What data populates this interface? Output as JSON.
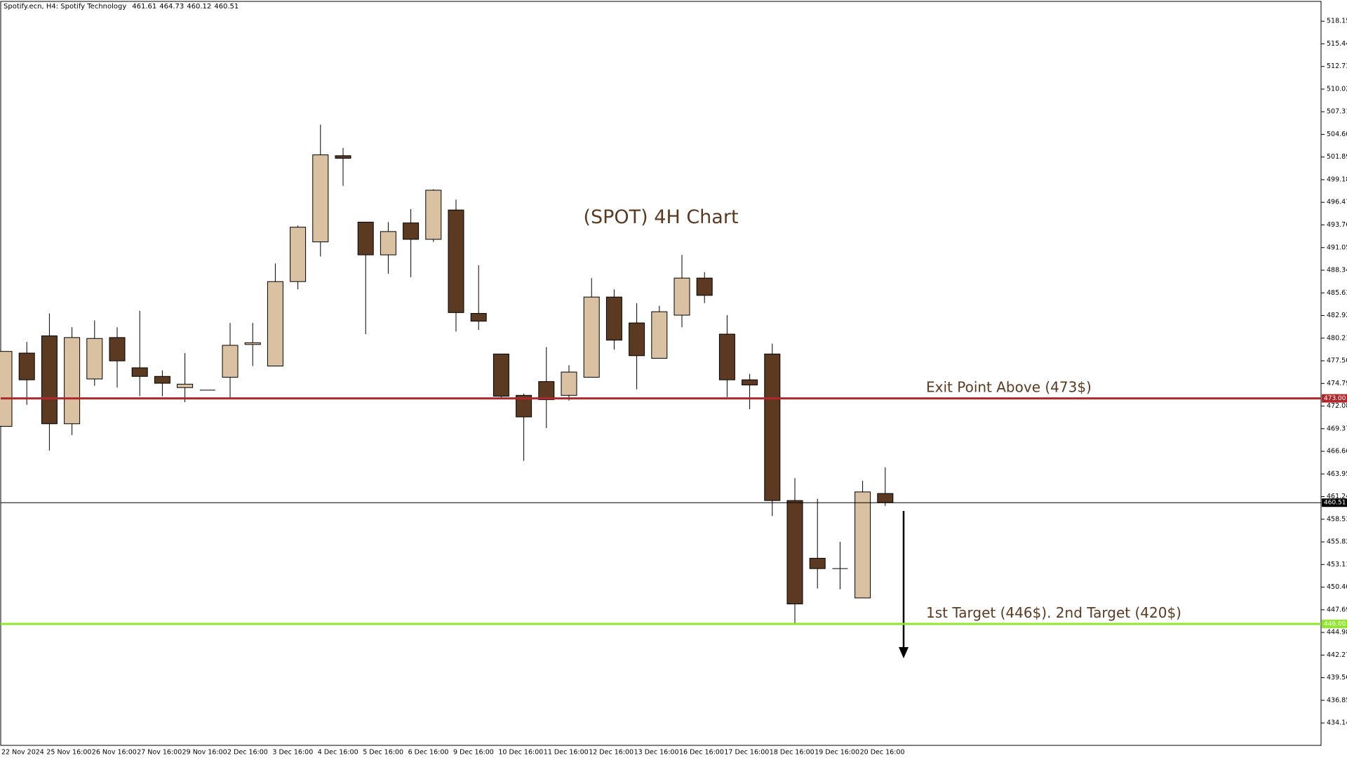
{
  "chart_data": {
    "type": "candlestick",
    "header": "Spotify.ecn, H4:  Spotify Technology",
    "title": "(SPOT) 4H Chart",
    "categories": [
      "22 Nov 2024",
      null,
      "25 Nov 16:00",
      null,
      "26 Nov 16:00",
      null,
      "27 Nov 16:00",
      null,
      "29 Nov 16:00",
      null,
      "2 Dec 16:00",
      null,
      "3 Dec 16:00",
      null,
      "4 Dec 16:00",
      null,
      "5 Dec 16:00",
      null,
      "6 Dec 16:00",
      null,
      "9 Dec 16:00",
      null,
      "10 Dec 16:00",
      null,
      "11 Dec 16:00",
      null,
      "12 Dec 16:00",
      null,
      "13 Dec 16:00",
      null,
      "16 Dec 16:00",
      null,
      "17 Dec 16:00",
      null,
      "18 Dec 16:00",
      null,
      "19 Dec 16:00",
      null,
      "20 Dec 16:00",
      null
    ],
    "open": [
      469.65,
      478.42,
      480.48,
      469.96,
      475.32,
      480.28,
      476.66,
      475.63,
      474.29,
      473.98,
      475.53,
      479.45,
      476.87,
      486.98,
      491.73,
      502.05,
      494.1,
      490.18,
      494.0,
      492.04,
      495.55,
      483.17,
      478.31,
      473.36,
      475.01,
      473.36,
      475.53,
      485.13,
      482.03,
      477.8,
      482.96,
      487.4,
      480.69,
      475.22,
      478.31,
      460.77,
      453.86,
      452.62,
      449.11,
      461.61
    ],
    "high": [
      478.62,
      479.76,
      483.17,
      481.51,
      482.34,
      481.51,
      483.47,
      476.35,
      478.42,
      473.98,
      482.03,
      482.03,
      489.15,
      493.69,
      505.77,
      502.98,
      494.1,
      494.1,
      495.65,
      498.03,
      496.79,
      488.94,
      478.31,
      473.57,
      479.14,
      476.97,
      487.4,
      486.05,
      484.4,
      484.09,
      490.18,
      488.12,
      482.96,
      475.94,
      479.55,
      463.45,
      460.98,
      455.82,
      463.14,
      464.73
    ],
    "low": [
      469.65,
      472.23,
      466.76,
      468.61,
      474.5,
      474.29,
      473.26,
      473.26,
      472.54,
      473.98,
      472.95,
      476.87,
      476.87,
      486.05,
      489.98,
      498.44,
      480.69,
      487.91,
      487.5,
      491.73,
      481.0,
      481.2,
      473.05,
      465.52,
      469.44,
      472.74,
      475.53,
      478.83,
      474.08,
      477.8,
      481.51,
      484.4,
      473.15,
      471.71,
      458.91,
      446.01,
      450.24,
      450.14,
      449.11,
      460.12
    ],
    "close": [
      478.62,
      475.22,
      469.96,
      480.28,
      480.17,
      477.49,
      475.63,
      474.81,
      474.7,
      473.98,
      479.35,
      479.66,
      486.98,
      493.49,
      502.15,
      501.74,
      490.18,
      492.97,
      492.04,
      497.92,
      483.27,
      482.24,
      473.26,
      470.78,
      472.85,
      476.15,
      485.13,
      479.97,
      478.11,
      483.37,
      487.4,
      485.33,
      475.22,
      474.6,
      460.77,
      448.39,
      452.62,
      452.62,
      461.8,
      460.51
    ],
    "up_color": "#d9c1a1",
    "down_color": "#5b3a21",
    "ylim": [
      431.46,
      520.52
    ],
    "yticks": [
      518.15,
      515.44,
      512.73,
      510.02,
      507.31,
      {
        "value": 504.6,
        "label": "504.60"
      },
      501.89,
      499.18,
      496.47,
      493.76,
      491.05,
      488.34,
      485.63,
      482.92,
      480.21,
      {
        "value": 477.5,
        "label": "477.50"
      },
      474.79,
      472.08,
      469.37,
      466.66,
      463.95,
      461.24,
      458.53,
      455.82,
      453.11,
      {
        "value": 450.4,
        "label": "450.40"
      },
      447.69,
      444.98,
      442.27,
      439.56,
      436.85,
      434.14
    ],
    "levels": [
      {
        "name": "Exit Point Above (473$)",
        "value": 473,
        "label": "473.00",
        "color": "#b0282c"
      },
      {
        "name": "1st Target (446$). 2nd Target (420$)",
        "value": 446,
        "label": "446.00",
        "color": "#8ee82a"
      },
      {
        "value": 460.51,
        "label": "460.51",
        "color": "#000000"
      }
    ]
  }
}
